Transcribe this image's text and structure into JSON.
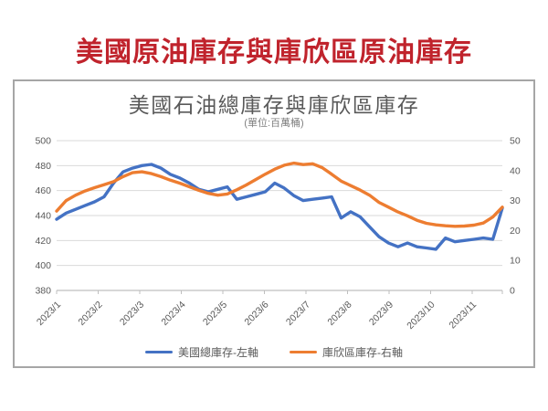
{
  "page": {
    "title": "美國原油庫存與庫欣區原油庫存",
    "title_color": "#c0232c",
    "background": "#ffffff"
  },
  "chart": {
    "title": "美國石油總庫存與庫欣區庫存",
    "subtitle": "(單位:百萬桶)",
    "title_color": "#595959",
    "subtitle_color": "#7f7f7f",
    "panel_border_color": "#a6a6a6",
    "gridline_color": "#d9d9d9",
    "axis_line_color": "#bfbfbf",
    "label_color": "#595959",
    "legend": [
      {
        "label": "美國總庫存-左軸",
        "color": "#4472c4"
      },
      {
        "label": "庫欣區庫存-右軸",
        "color": "#ed7d31"
      }
    ]
  },
  "chart_data": {
    "type": "line",
    "title": "美國石油總庫存與庫欣區庫存",
    "subtitle": "(單位:百萬桶)",
    "unit": "百萬桶",
    "x_sampling": "weekly",
    "categories": [
      "2023/1",
      "2023/2",
      "2023/3",
      "2023/4",
      "2023/5",
      "2023/6",
      "2023/7",
      "2023/8",
      "2023/9",
      "2023/10",
      "2023/11"
    ],
    "left_axis": {
      "min": 380,
      "max": 500,
      "ticks": [
        500,
        480,
        460,
        440,
        420,
        400,
        380
      ]
    },
    "right_axis": {
      "min": 0,
      "max": 50,
      "ticks": [
        50,
        40,
        30,
        20,
        10,
        0
      ]
    },
    "grid": true,
    "legend_position": "bottom",
    "series": [
      {
        "name": "美國總庫存-左軸",
        "axis": "left",
        "color": "#4472c4",
        "values": [
          437,
          442,
          445,
          448,
          451,
          455,
          466,
          475,
          478,
          480,
          481,
          478,
          473,
          470,
          466,
          461,
          459,
          461,
          463,
          453,
          455,
          457,
          459,
          466,
          462,
          456,
          452,
          453,
          454,
          455,
          438,
          443,
          439,
          431,
          423,
          418,
          415,
          418,
          415,
          414,
          413,
          422,
          419,
          420,
          421,
          422,
          421,
          446
        ]
      },
      {
        "name": "庫欣區庫存-右軸",
        "axis": "right",
        "color": "#ed7d31",
        "values": [
          26.5,
          30.0,
          31.8,
          33.2,
          34.3,
          35.3,
          36.3,
          38.0,
          39.3,
          39.6,
          39.0,
          38.0,
          36.8,
          35.8,
          34.6,
          33.4,
          32.4,
          31.8,
          32.2,
          33.6,
          35.2,
          37.0,
          38.8,
          40.5,
          41.8,
          42.5,
          42.0,
          42.3,
          41.0,
          38.8,
          36.5,
          35.0,
          33.5,
          31.8,
          29.4,
          27.8,
          26.2,
          24.9,
          23.4,
          22.4,
          21.9,
          21.6,
          21.4,
          21.5,
          21.8,
          22.5,
          24.5,
          27.8
        ]
      }
    ]
  }
}
